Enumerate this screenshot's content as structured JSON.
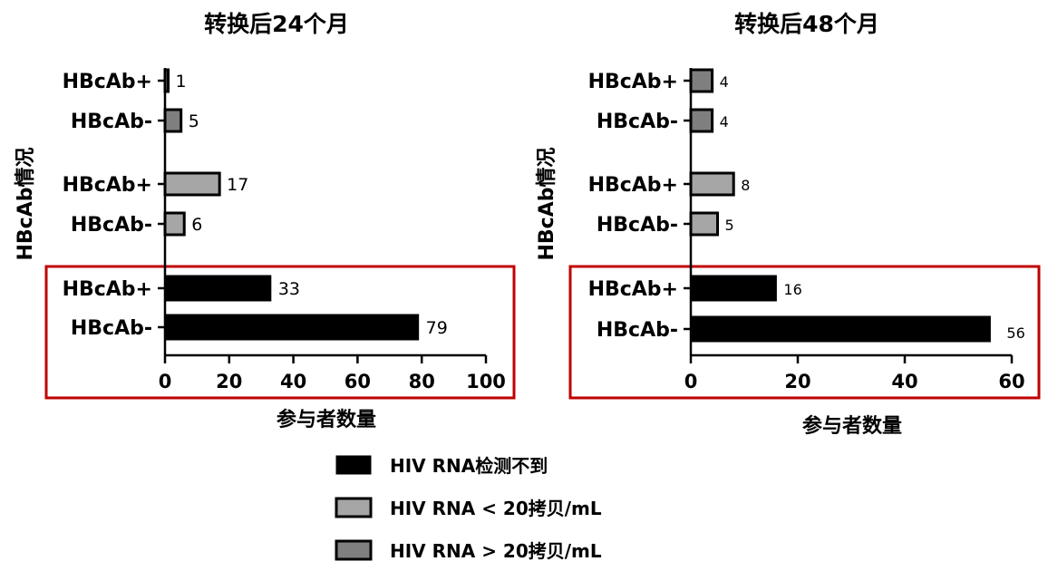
{
  "colors": {
    "undetectable": "#000000",
    "lt20": "#a6a6a6",
    "gt20": "#7f7f7f",
    "highlight_box": "#c00000"
  },
  "legend": [
    {
      "key": "undetectable",
      "label": "HIV RNA检测不到"
    },
    {
      "key": "lt20",
      "label": "HIV RNA < 20拷贝/mL"
    },
    {
      "key": "gt20",
      "label": "HIV RNA > 20拷贝/mL"
    }
  ],
  "chart_data": [
    {
      "type": "bar",
      "orientation": "horizontal",
      "title": "转换后24个月",
      "xlabel": "参与者数量",
      "ylabel": "HBcAb情况",
      "xlim": [
        0,
        100
      ],
      "xticks": [
        "0",
        "20",
        "40",
        "60",
        "80",
        "100"
      ],
      "bars": [
        {
          "label": "HBcAb+",
          "series": "gt20",
          "value": 1
        },
        {
          "label": "HBcAb-",
          "series": "gt20",
          "value": 5
        },
        {
          "label": "HBcAb+",
          "series": "lt20",
          "value": 17
        },
        {
          "label": "HBcAb-",
          "series": "lt20",
          "value": 6
        },
        {
          "label": "HBcAb+",
          "series": "undetectable",
          "value": 33
        },
        {
          "label": "HBcAb-",
          "series": "undetectable",
          "value": 79
        }
      ]
    },
    {
      "type": "bar",
      "orientation": "horizontal",
      "title": "转换后48个月",
      "xlabel": "参与者数量",
      "ylabel": "HBcAb情况",
      "xlim": [
        0,
        60
      ],
      "xticks": [
        "0",
        "20",
        "40",
        "60"
      ],
      "bars": [
        {
          "label": "HBcAb+",
          "series": "gt20",
          "value": 4
        },
        {
          "label": "HBcAb-",
          "series": "gt20",
          "value": 4
        },
        {
          "label": "HBcAb+",
          "series": "lt20",
          "value": 8
        },
        {
          "label": "HBcAb-",
          "series": "lt20",
          "value": 5
        },
        {
          "label": "HBcAb+",
          "series": "undetectable",
          "value": 16
        },
        {
          "label": "HBcAb-",
          "series": "undetectable",
          "value": 56
        }
      ]
    }
  ]
}
